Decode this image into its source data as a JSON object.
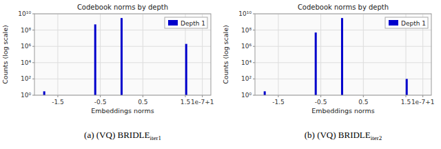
{
  "chart_data": [
    {
      "type": "bar",
      "title": "Codebook norms by depth",
      "xlabel": "Embeddings norms",
      "ylabel": "Counts (log scale)",
      "x": [
        -1.82,
        -0.62,
        0.0,
        1.52
      ],
      "series": [
        {
          "name": "Depth 1",
          "color": "#0000cc",
          "values": [
            3,
            500000000.0,
            3000000000.0,
            2000000.0
          ]
        }
      ],
      "xlim": [
        -2.05,
        2.1
      ],
      "xticks": [
        -1.5,
        -0.5,
        0.5,
        1.5,
        {
          "value": 1.9,
          "label": "1e-7+1"
        }
      ],
      "ylim": [
        1,
        10000000000.0
      ],
      "yticks": [
        {
          "value": 1,
          "label": "10⁰"
        },
        {
          "value": 100,
          "label": "10²"
        },
        {
          "value": 10000,
          "label": "10⁴"
        },
        {
          "value": 1000000,
          "label": "10⁶"
        },
        {
          "value": 100000000,
          "label": "10⁸"
        },
        {
          "value": 10000000000,
          "label": "10¹⁰"
        }
      ],
      "log": "y",
      "grid": true,
      "legend": "upper right",
      "annotations": [
        {
          "text": "(a) (VQ) BRIDLE",
          "subscript": "iter1"
        }
      ]
    },
    {
      "type": "bar",
      "title": "Codebook norms by depth",
      "xlabel": "Embeddings norms",
      "ylabel": "Counts (log scale)",
      "x": [
        -1.82,
        -0.62,
        0.0,
        1.52
      ],
      "series": [
        {
          "name": "Depth 1",
          "color": "#0000cc",
          "values": [
            3,
            50000000.0,
            3000000000.0,
            100.0
          ]
        }
      ],
      "xlim": [
        -2.05,
        2.1
      ],
      "xticks": [
        -1.5,
        -0.5,
        0.5,
        1.5,
        {
          "value": 1.9,
          "label": "1e-7+1"
        }
      ],
      "ylim": [
        1,
        10000000000.0
      ],
      "yticks": [
        {
          "value": 1,
          "label": "10⁰"
        },
        {
          "value": 100,
          "label": "10²"
        },
        {
          "value": 10000,
          "label": "10⁴"
        },
        {
          "value": 1000000,
          "label": "10⁶"
        },
        {
          "value": 100000000,
          "label": "10⁸"
        },
        {
          "value": 10000000000,
          "label": "10¹⁰"
        }
      ],
      "log": "y",
      "grid": true,
      "legend": "upper right",
      "annotations": [
        {
          "text": "(b) (VQ) BRIDLE",
          "subscript": "iter2"
        }
      ]
    }
  ]
}
